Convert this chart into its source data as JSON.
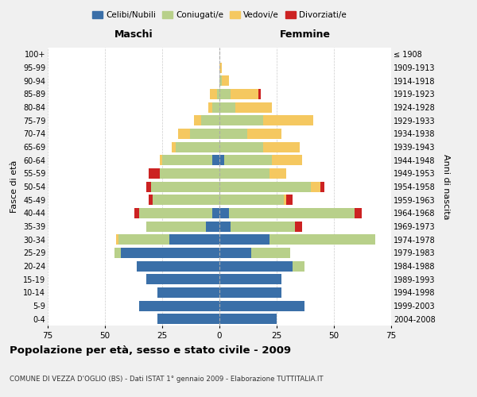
{
  "age_groups": [
    "0-4",
    "5-9",
    "10-14",
    "15-19",
    "20-24",
    "25-29",
    "30-34",
    "35-39",
    "40-44",
    "45-49",
    "50-54",
    "55-59",
    "60-64",
    "65-69",
    "70-74",
    "75-79",
    "80-84",
    "85-89",
    "90-94",
    "95-99",
    "100+"
  ],
  "birth_years": [
    "2004-2008",
    "1999-2003",
    "1994-1998",
    "1989-1993",
    "1984-1988",
    "1979-1983",
    "1974-1978",
    "1969-1973",
    "1964-1968",
    "1959-1963",
    "1954-1958",
    "1949-1953",
    "1944-1948",
    "1939-1943",
    "1934-1938",
    "1929-1933",
    "1924-1928",
    "1919-1923",
    "1914-1918",
    "1909-1913",
    "≤ 1908"
  ],
  "male": {
    "celibi": [
      27,
      35,
      27,
      32,
      36,
      43,
      22,
      6,
      3,
      0,
      0,
      0,
      3,
      0,
      0,
      0,
      0,
      0,
      0,
      0,
      0
    ],
    "coniugati": [
      0,
      0,
      0,
      0,
      0,
      3,
      22,
      26,
      32,
      29,
      30,
      26,
      22,
      19,
      13,
      8,
      3,
      1,
      0,
      0,
      0
    ],
    "vedovi": [
      0,
      0,
      0,
      0,
      0,
      0,
      1,
      0,
      0,
      0,
      0,
      0,
      1,
      2,
      5,
      3,
      2,
      3,
      0,
      0,
      0
    ],
    "divorziati": [
      0,
      0,
      0,
      0,
      0,
      0,
      0,
      0,
      2,
      2,
      2,
      5,
      0,
      0,
      0,
      0,
      0,
      0,
      0,
      0,
      0
    ]
  },
  "female": {
    "nubili": [
      25,
      37,
      27,
      27,
      32,
      14,
      22,
      5,
      4,
      0,
      0,
      0,
      2,
      0,
      0,
      0,
      0,
      0,
      0,
      0,
      0
    ],
    "coniugate": [
      0,
      0,
      0,
      0,
      5,
      17,
      46,
      28,
      55,
      28,
      40,
      22,
      21,
      19,
      12,
      19,
      7,
      5,
      1,
      0,
      0
    ],
    "vedove": [
      0,
      0,
      0,
      0,
      0,
      0,
      0,
      0,
      0,
      1,
      4,
      7,
      13,
      16,
      15,
      22,
      16,
      12,
      3,
      1,
      0
    ],
    "divorziate": [
      0,
      0,
      0,
      0,
      0,
      0,
      0,
      3,
      3,
      3,
      2,
      0,
      0,
      0,
      0,
      0,
      0,
      1,
      0,
      0,
      0
    ]
  },
  "colors": {
    "celibi": "#3a6fa8",
    "coniugati": "#b8d08a",
    "vedovi": "#f5c860",
    "divorziati": "#cc2222"
  },
  "xlim": 75,
  "title": "Popolazione per età, sesso e stato civile - 2009",
  "subtitle": "COMUNE DI VEZZA D'OGLIO (BS) - Dati ISTAT 1° gennaio 2009 - Elaborazione TUTTITALIA.IT",
  "xlabel_left": "Maschi",
  "xlabel_right": "Femmine",
  "ylabel_left": "Fasce di età",
  "ylabel_right": "Anni di nascita",
  "legend_labels": [
    "Celibi/Nubili",
    "Coniugati/e",
    "Vedovi/e",
    "Divorziati/e"
  ],
  "bg_color": "#f0f0f0",
  "plot_bg": "#ffffff"
}
